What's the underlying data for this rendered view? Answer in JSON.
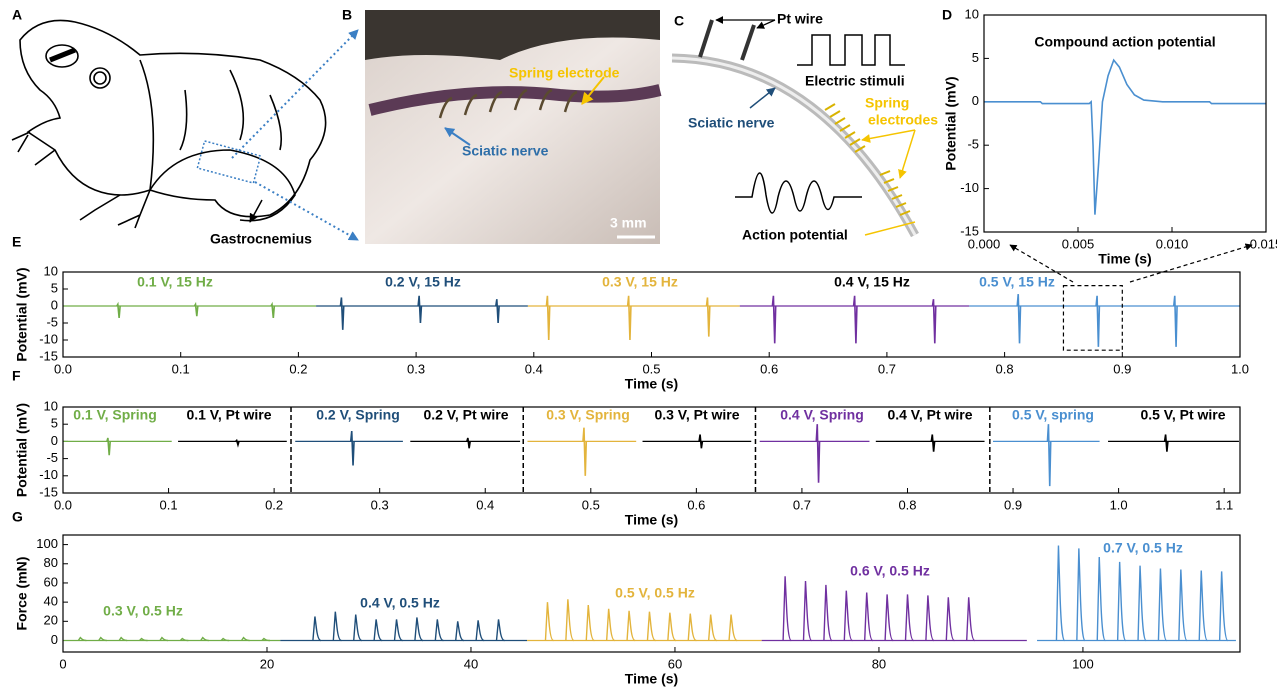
{
  "panels": {
    "A": {
      "label": "A",
      "annotations": [
        "Gastrocnemius"
      ]
    },
    "B": {
      "label": "B",
      "annotations": [
        "Spring electrode",
        "Sciatic nerve",
        "3 mm"
      ]
    },
    "C": {
      "label": "C",
      "annotations": [
        "Pt wire",
        "Electric stimuli",
        "Sciatic nerve",
        "Spring",
        "electrodes",
        "Action potential"
      ]
    }
  },
  "chart_data": [
    {
      "type": "line",
      "panel": "D",
      "title": "Compound action potential",
      "x_label": "Time (s)",
      "y_label": "Potential (mV)",
      "color": "#4a8fd0",
      "x": [
        0,
        0.003,
        0.0031,
        0.0056,
        0.0057,
        0.0058,
        0.0059,
        0.0061,
        0.0063,
        0.0066,
        0.0069,
        0.0072,
        0.0076,
        0.008,
        0.0085,
        0.0095,
        0.012,
        0.0121,
        0.015
      ],
      "values": [
        0,
        0,
        -0.2,
        -0.2,
        0,
        -5,
        -13,
        -7,
        0,
        3,
        4.8,
        4,
        2,
        0.8,
        0.2,
        0,
        0,
        -0.2,
        -0.2
      ],
      "xlim": [
        0,
        0.015
      ],
      "xticks": [
        {
          "value": 0,
          "label": "0.000"
        },
        0.005,
        {
          "value": 0.01,
          "label": "0.010"
        },
        0.015
      ],
      "ylim": [
        -15,
        10
      ],
      "yticks": [
        -15,
        -10,
        -5,
        0,
        5,
        10
      ]
    },
    {
      "type": "spike",
      "panel": "E",
      "x_label": "Time (s)",
      "y_label": "Potential (mV)",
      "xlim": [
        0,
        1
      ],
      "xticks": [
        {
          "value": 0,
          "label": "0.0"
        },
        0.1,
        0.2,
        0.3,
        0.4,
        0.5,
        0.6,
        0.7,
        0.8,
        0.9,
        {
          "value": 1,
          "label": "1.0"
        }
      ],
      "ylim": [
        -15,
        10
      ],
      "yticks": [
        -15,
        -10,
        -5,
        0,
        5,
        10
      ],
      "zoom_box": {
        "xlim": [
          0.85,
          0.9
        ],
        "ylim": [
          -13,
          6
        ]
      },
      "series": [
        {
          "name": "0.1 V, 15 Hz",
          "color": "#70ad47",
          "x_range": [
            0,
            0.215
          ],
          "x": [
            0.047,
            0.113,
            0.178
          ],
          "values": [
            0.5,
            0.5,
            0.5
          ],
          "troughs": [
            -3.5,
            -3,
            -3.5
          ]
        },
        {
          "name": "0.2 V, 15 Hz",
          "color": "#1f4e79",
          "x_range": [
            0.215,
            0.395
          ],
          "x": [
            0.237,
            0.303,
            0.369
          ],
          "values": [
            2.5,
            3,
            2
          ],
          "troughs": [
            -7,
            -5,
            -5
          ]
        },
        {
          "name": "0.3 V, 15 Hz",
          "color": "#e3b43c",
          "x_range": [
            0.395,
            0.575
          ],
          "x": [
            0.412,
            0.481,
            0.548
          ],
          "values": [
            3,
            3,
            2.5
          ],
          "troughs": [
            -10,
            -10,
            -9
          ]
        },
        {
          "name": "0.4 V, 15 Hz",
          "color": "#7030a0",
          "label_color": "#000000",
          "x_range": [
            0.575,
            0.77
          ],
          "x": [
            0.604,
            0.673,
            0.74
          ],
          "values": [
            3,
            3,
            2
          ],
          "troughs": [
            -11,
            -11,
            -11
          ]
        },
        {
          "name": "0.5 V, 15 Hz",
          "color": "#4a8fd0",
          "x_range": [
            0.77,
            1
          ],
          "x": [
            0.812,
            0.879,
            0.945
          ],
          "values": [
            3.5,
            3,
            3
          ],
          "troughs": [
            -11,
            -12,
            -12
          ]
        }
      ]
    },
    {
      "type": "spike",
      "panel": "F",
      "x_label": "Time (s)",
      "y_label": "Potential (mV)",
      "xlim": [
        0,
        1.115
      ],
      "xticks": [
        {
          "value": 0,
          "label": "0.0"
        },
        0.1,
        0.2,
        0.3,
        0.4,
        0.5,
        0.6,
        0.7,
        0.8,
        0.9,
        {
          "value": 1,
          "label": "1.0"
        },
        1.1
      ],
      "ylim": [
        -15,
        10
      ],
      "yticks": [
        -15,
        -10,
        -5,
        0,
        5,
        10
      ],
      "dividers": [
        0.216,
        0.436,
        0.656,
        0.878
      ],
      "series": [
        {
          "name": "0.1 V, Spring",
          "color": "#70ad47",
          "x_range": [
            0,
            0.103
          ],
          "x": [
            0.043
          ],
          "values": [
            1
          ],
          "troughs": [
            -4
          ]
        },
        {
          "name": "0.1 V, Pt wire",
          "color": "#000000",
          "x_range": [
            0.109,
            0.212
          ],
          "x": [
            0.165
          ],
          "values": [
            0.3
          ],
          "troughs": [
            -1
          ]
        },
        {
          "name": "0.2 V, Spring",
          "color": "#1f4e79",
          "x_range": [
            0.22,
            0.322
          ],
          "x": [
            0.274
          ],
          "values": [
            3
          ],
          "troughs": [
            -7
          ]
        },
        {
          "name": "0.2 V, Pt wire",
          "color": "#000000",
          "x_range": [
            0.329,
            0.433
          ],
          "x": [
            0.384
          ],
          "values": [
            1
          ],
          "troughs": [
            -2
          ]
        },
        {
          "name": "0.3 V, Spring",
          "color": "#e3b43c",
          "x_range": [
            0.44,
            0.543
          ],
          "x": [
            0.494
          ],
          "values": [
            4
          ],
          "troughs": [
            -10
          ]
        },
        {
          "name": "0.3 V, Pt wire",
          "color": "#000000",
          "x_range": [
            0.549,
            0.652
          ],
          "x": [
            0.604
          ],
          "values": [
            2
          ],
          "troughs": [
            -2
          ]
        },
        {
          "name": "0.4 V, Spring",
          "color": "#7030a0",
          "x_range": [
            0.66,
            0.764
          ],
          "x": [
            0.715
          ],
          "values": [
            5
          ],
          "troughs": [
            -12
          ]
        },
        {
          "name": "0.4 V, Pt wire",
          "color": "#000000",
          "x_range": [
            0.77,
            0.873
          ],
          "x": [
            0.824
          ],
          "values": [
            2
          ],
          "troughs": [
            -3
          ]
        },
        {
          "name": "0.5 V, spring",
          "color": "#4a8fd0",
          "x_range": [
            0.881,
            0.982
          ],
          "x": [
            0.934
          ],
          "values": [
            5
          ],
          "troughs": [
            -13
          ]
        },
        {
          "name": "0.5 V, Pt wire",
          "color": "#000000",
          "x_range": [
            0.99,
            1.114
          ],
          "x": [
            1.045
          ],
          "values": [
            2
          ],
          "troughs": [
            -3
          ]
        }
      ]
    },
    {
      "type": "peak",
      "panel": "G",
      "x_label": "Time (s)",
      "y_label": "Force (mN)",
      "xlim": [
        0,
        115.4
      ],
      "xticks": [
        0,
        20,
        40,
        60,
        80,
        100
      ],
      "ylim": [
        -12,
        110
      ],
      "yticks": [
        0,
        20,
        40,
        60,
        80,
        100
      ],
      "series": [
        {
          "name": "0.3 V, 0.5 Hz",
          "color": "#70ad47",
          "x_range": [
            0,
            21.3
          ],
          "x": [
            1.7,
            3.7,
            5.7,
            7.7,
            9.7,
            11.7,
            13.7,
            15.7,
            17.7,
            19.7
          ],
          "values": [
            3,
            3,
            3,
            2,
            3,
            2,
            3,
            2,
            3,
            2
          ]
        },
        {
          "name": "0.4 V, 0.5 Hz",
          "color": "#1f4e79",
          "x_range": [
            21.3,
            45.5
          ],
          "x": [
            24.7,
            26.7,
            28.7,
            30.7,
            32.7,
            34.7,
            36.7,
            38.7,
            40.7,
            42.7
          ],
          "values": [
            25,
            30,
            27,
            22,
            22,
            24,
            22,
            20,
            21,
            22
          ]
        },
        {
          "name": "0.5 V, 0.5 Hz",
          "color": "#e3b43c",
          "x_range": [
            45.5,
            68.5
          ],
          "x": [
            47.5,
            49.5,
            51.5,
            53.5,
            55.5,
            57.5,
            59.5,
            61.5,
            63.5,
            65.5
          ],
          "values": [
            40,
            43,
            37,
            33,
            31,
            30,
            29,
            28,
            27,
            27
          ]
        },
        {
          "name": "0.6 V, 0.5 Hz",
          "color": "#7030a0",
          "x_range": [
            68.5,
            94.5
          ],
          "x": [
            70.8,
            72.8,
            74.8,
            76.8,
            78.8,
            80.8,
            82.8,
            84.8,
            86.8,
            88.8
          ],
          "values": [
            67,
            62,
            58,
            52,
            50,
            48,
            48,
            47,
            45,
            45
          ]
        },
        {
          "name": "0.7 V, 0.5 Hz",
          "color": "#4a8fd0",
          "x_range": [
            95.5,
            115
          ],
          "x": [
            97.6,
            99.6,
            101.6,
            103.6,
            105.6,
            107.6,
            109.6,
            111.6,
            113.6
          ],
          "values": [
            99,
            96,
            87,
            82,
            78,
            75,
            74,
            73,
            72
          ]
        }
      ]
    }
  ]
}
